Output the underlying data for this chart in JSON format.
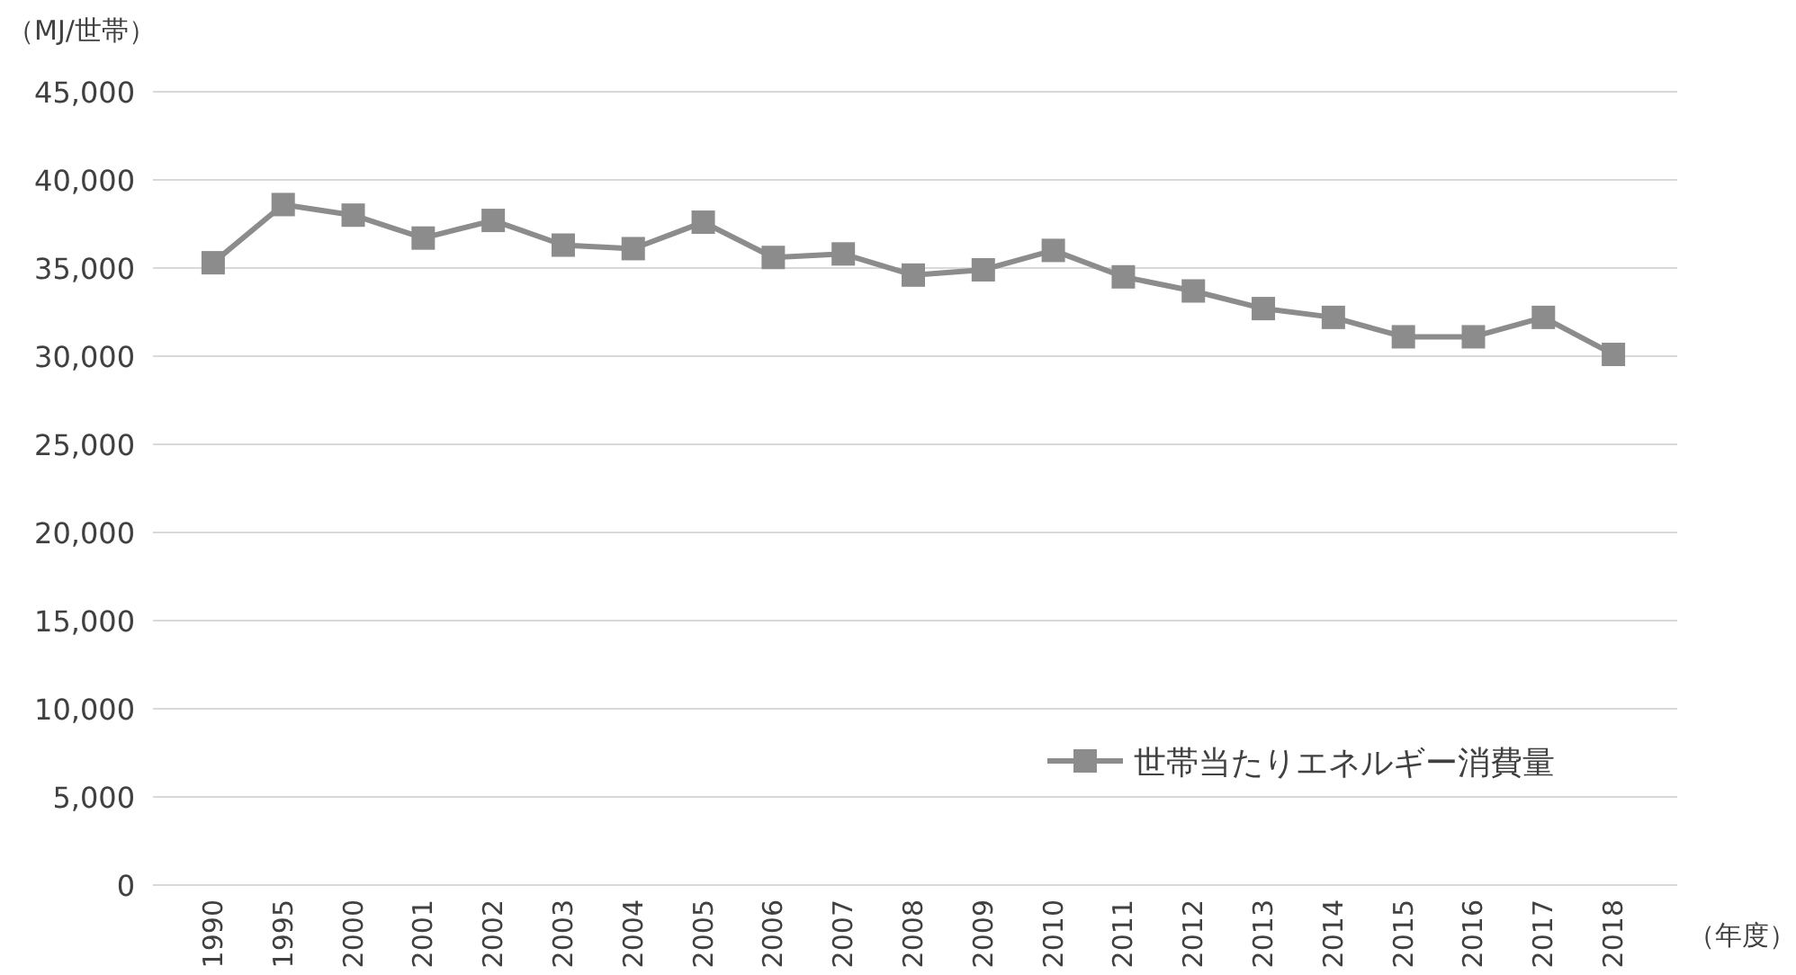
{
  "chart_data": {
    "type": "line",
    "ylabel": "（MJ/世帯）",
    "xlabel": "（年度）",
    "categories": [
      "1990",
      "1995",
      "2000",
      "2001",
      "2002",
      "2003",
      "2004",
      "2005",
      "2006",
      "2007",
      "2008",
      "2009",
      "2010",
      "2011",
      "2012",
      "2013",
      "2014",
      "2015",
      "2016",
      "2017",
      "2018"
    ],
    "series": [
      {
        "name": "世帯当たりエネルギー消費量",
        "color": "#8c8c8c",
        "values": [
          35300,
          38600,
          38000,
          36700,
          37700,
          36300,
          36100,
          37600,
          35600,
          35800,
          34600,
          34900,
          36000,
          34500,
          33700,
          32700,
          32200,
          31100,
          31100,
          32200,
          30100
        ]
      }
    ],
    "ylim": [
      0,
      45000
    ],
    "yticks": [
      {
        "value": 0,
        "label": "0"
      },
      {
        "value": 5000,
        "label": "5,000"
      },
      {
        "value": 10000,
        "label": "10,000"
      },
      {
        "value": 15000,
        "label": "15,000"
      },
      {
        "value": 20000,
        "label": "20,000"
      },
      {
        "value": 25000,
        "label": "25,000"
      },
      {
        "value": 30000,
        "label": "30,000"
      },
      {
        "value": 35000,
        "label": "35,000"
      },
      {
        "value": 40000,
        "label": "40,000"
      },
      {
        "value": 45000,
        "label": "45,000"
      }
    ],
    "grid": "y",
    "legend": "bottom right",
    "marker": "square",
    "line_style": "solid"
  }
}
